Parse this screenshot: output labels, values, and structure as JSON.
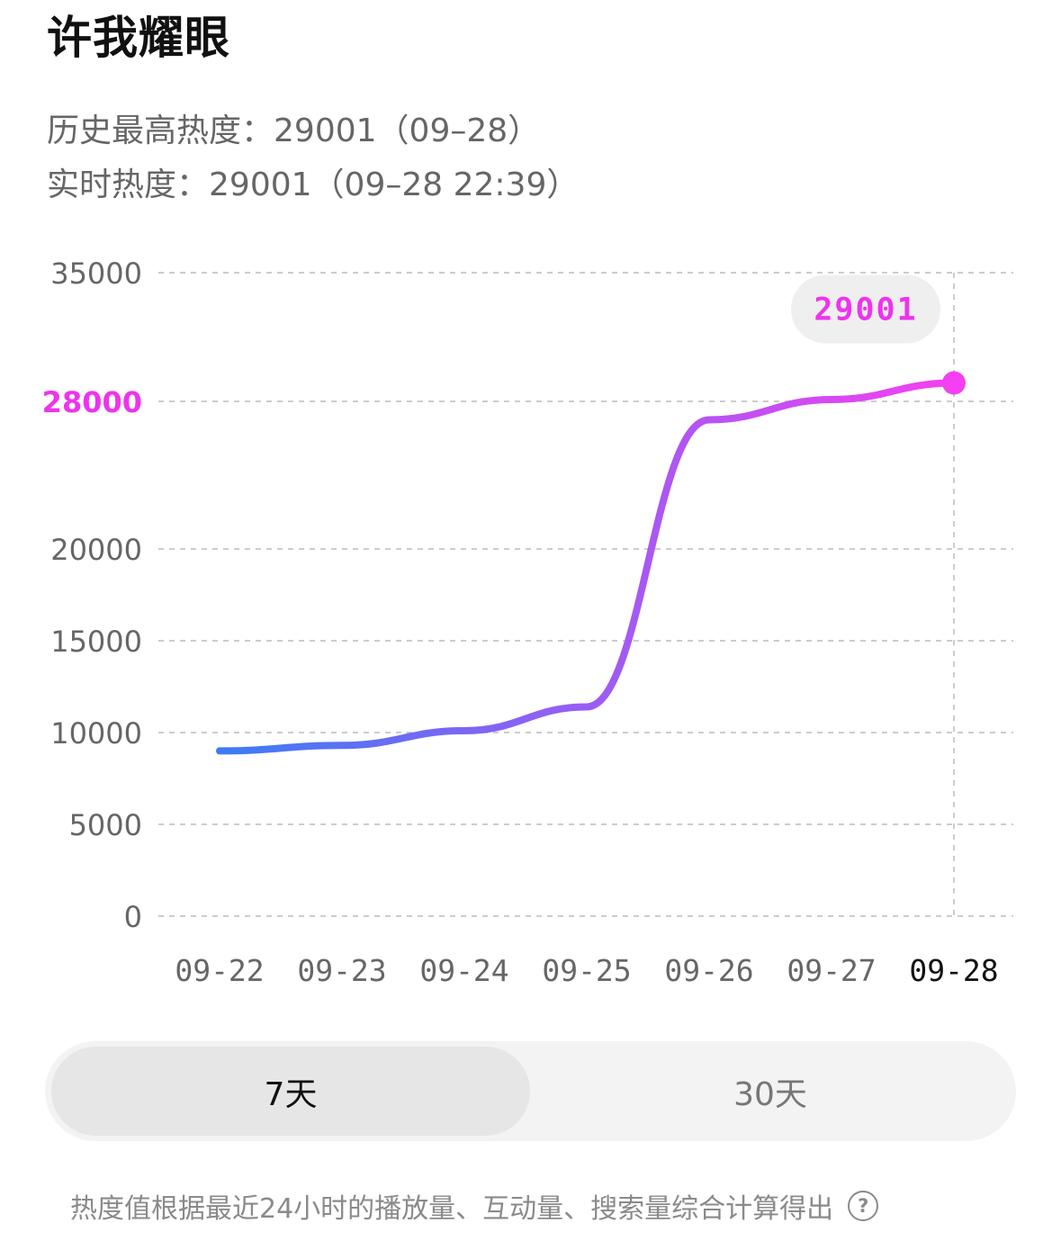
{
  "title": "许我耀眼",
  "stats": {
    "peak_label": "历史最高热度：",
    "peak_value": "29001（09–28）",
    "realtime_label": "实时热度：",
    "realtime_value": "29001（09–28 22:39）"
  },
  "chart_data": {
    "type": "line",
    "x": [
      "09-22",
      "09-23",
      "09-24",
      "09-25",
      "09-26",
      "09-27",
      "09-28"
    ],
    "series": [
      {
        "values": [
          9000,
          9300,
          10100,
          11400,
          27000,
          28100,
          29001
        ]
      }
    ],
    "yticks": [
      0,
      5000,
      10000,
      15000,
      20000,
      28000,
      35000
    ],
    "highlight_ytick": 28000,
    "ylim": [
      0,
      35000
    ],
    "callout": "29001",
    "active_x": "09-28",
    "grid": true,
    "line_color_start": "#3d7bf5",
    "line_color_end": "#f53ff2"
  },
  "range_toggle": {
    "options": [
      "7天",
      "30天"
    ],
    "selected": "7天"
  },
  "footnote": "热度值根据最近24小时的播放量、互动量、搜索量综合计算得出",
  "colors": {
    "accent": "#ee33ee",
    "grid": "#cccccc"
  }
}
